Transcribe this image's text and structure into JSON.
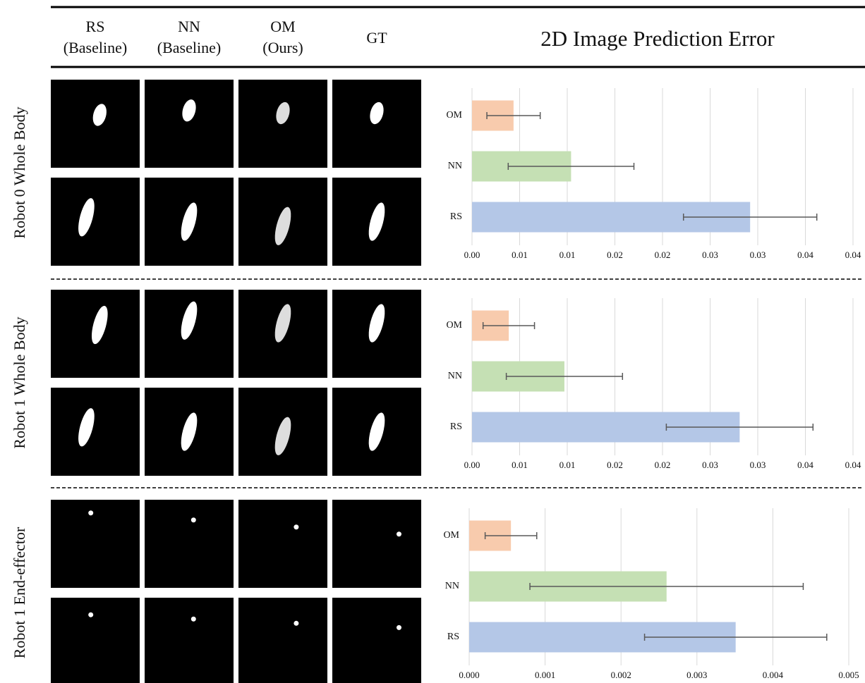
{
  "header": {
    "columns": [
      [
        "RS",
        "(Baseline)"
      ],
      [
        "NN",
        "(Baseline)"
      ],
      [
        "OM",
        "(Ours)"
      ],
      [
        "GT"
      ]
    ],
    "title": "2D Image Prediction Error"
  },
  "rows": [
    "Robot 0 Whole Body",
    "Robot 1 Whole Body",
    "Robot 1 End-effector"
  ],
  "chart_data": [
    {
      "type": "bar",
      "orientation": "horizontal",
      "categories": [
        "OM",
        "NN",
        "RS"
      ],
      "values": [
        0.00436,
        0.0104,
        0.0292
      ],
      "errors": [
        0.0028,
        0.0066,
        0.007
      ],
      "colors": [
        "#f8cbad",
        "#c5e0b4",
        "#b4c7e7"
      ],
      "error_color": "#595959",
      "xlim": [
        0,
        0.04
      ],
      "grid": true,
      "xticks": [
        {
          "value": 0,
          "label": "0.00"
        },
        {
          "value": 0.005,
          "label": "0.01"
        },
        {
          "value": 0.01,
          "label": "0.01"
        },
        {
          "value": 0.015,
          "label": "0.02"
        },
        {
          "value": 0.02,
          "label": "0.02"
        },
        {
          "value": 0.025,
          "label": "0.03"
        },
        {
          "value": 0.03,
          "label": "0.03"
        },
        {
          "value": 0.035,
          "label": "0.04"
        },
        {
          "value": 0.04,
          "label": "0.04"
        }
      ]
    },
    {
      "type": "bar",
      "orientation": "horizontal",
      "categories": [
        "OM",
        "NN",
        "RS"
      ],
      "values": [
        0.00386,
        0.0097,
        0.0281
      ],
      "errors": [
        0.0027,
        0.0061,
        0.0077
      ],
      "colors": [
        "#f8cbad",
        "#c5e0b4",
        "#b4c7e7"
      ],
      "error_color": "#595959",
      "xlim": [
        0,
        0.04
      ],
      "grid": true,
      "xticks": [
        {
          "value": 0,
          "label": "0.00"
        },
        {
          "value": 0.005,
          "label": "0.01"
        },
        {
          "value": 0.01,
          "label": "0.01"
        },
        {
          "value": 0.015,
          "label": "0.02"
        },
        {
          "value": 0.02,
          "label": "0.02"
        },
        {
          "value": 0.025,
          "label": "0.03"
        },
        {
          "value": 0.03,
          "label": "0.03"
        },
        {
          "value": 0.035,
          "label": "0.04"
        },
        {
          "value": 0.04,
          "label": "0.04"
        }
      ]
    },
    {
      "type": "bar",
      "orientation": "horizontal",
      "categories": [
        "OM",
        "NN",
        "RS"
      ],
      "values": [
        0.00055,
        0.0026,
        0.00351
      ],
      "errors": [
        0.00034,
        0.0018,
        0.0012
      ],
      "colors": [
        "#f8cbad",
        "#c5e0b4",
        "#b4c7e7"
      ],
      "error_color": "#595959",
      "xlim": [
        0,
        0.005
      ],
      "grid": true,
      "xticks": [
        {
          "value": 0,
          "label": "0.000"
        },
        {
          "value": 0.001,
          "label": "0.001"
        },
        {
          "value": 0.002,
          "label": "0.002"
        },
        {
          "value": 0.003,
          "label": "0.003"
        },
        {
          "value": 0.004,
          "label": "0.004"
        },
        {
          "value": 0.005,
          "label": "0.005"
        }
      ]
    }
  ]
}
